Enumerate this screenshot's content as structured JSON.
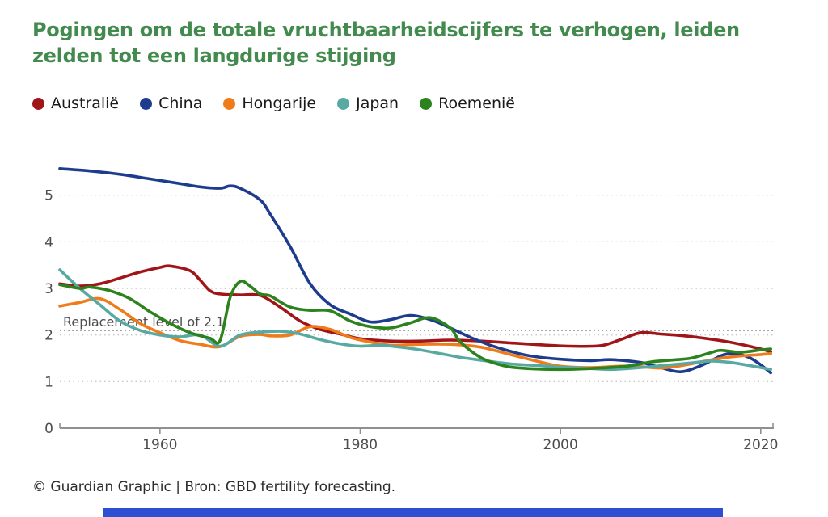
{
  "title": {
    "text": "Pogingen om de totale vruchtbaarheidscijfers te verhogen, leiden zelden tot een langdurige stijging",
    "color": "#428a4d"
  },
  "footer": {
    "text": "© Guardian Graphic | Bron: GBD fertility forecasting."
  },
  "colors": {
    "background": "#ffffff",
    "grid": "#c7c7c7",
    "replacement_line": "#8a8a8a",
    "axis": "#909090",
    "tick_label": "#4d4d4d",
    "bottom_bar": "#2d4fd3"
  },
  "chart_data": {
    "type": "line",
    "title": "Pogingen om de totale vruchtbaarheidscijfers te verhogen, leiden zelden tot een langdurige stijging",
    "xlabel": "",
    "ylabel": "",
    "xlim": [
      1950,
      2021.5
    ],
    "ylim": [
      0,
      5.7
    ],
    "x_ticks": [
      1960,
      1980,
      2000,
      2020
    ],
    "y_ticks": [
      0,
      1,
      2,
      3,
      4,
      5
    ],
    "grid": "horizontal dotted",
    "legend_position": "top-left",
    "annotation": {
      "text": "Replacement level of 2.1",
      "y": 2.1
    },
    "series": [
      {
        "name": "Australië",
        "color": "#a01518",
        "points": [
          [
            1950,
            3.1
          ],
          [
            1952,
            3.05
          ],
          [
            1954,
            3.1
          ],
          [
            1956,
            3.22
          ],
          [
            1958,
            3.35
          ],
          [
            1960,
            3.45
          ],
          [
            1961,
            3.48
          ],
          [
            1963,
            3.38
          ],
          [
            1964,
            3.18
          ],
          [
            1965,
            2.95
          ],
          [
            1966,
            2.88
          ],
          [
            1968,
            2.86
          ],
          [
            1970,
            2.85
          ],
          [
            1972,
            2.6
          ],
          [
            1974,
            2.3
          ],
          [
            1976,
            2.12
          ],
          [
            1978,
            2.02
          ],
          [
            1980,
            1.92
          ],
          [
            1983,
            1.87
          ],
          [
            1986,
            1.87
          ],
          [
            1989,
            1.89
          ],
          [
            1992,
            1.87
          ],
          [
            1995,
            1.83
          ],
          [
            1998,
            1.79
          ],
          [
            2001,
            1.76
          ],
          [
            2004,
            1.77
          ],
          [
            2006,
            1.9
          ],
          [
            2008,
            2.05
          ],
          [
            2010,
            2.02
          ],
          [
            2012,
            1.99
          ],
          [
            2014,
            1.94
          ],
          [
            2016,
            1.88
          ],
          [
            2018,
            1.8
          ],
          [
            2020,
            1.7
          ],
          [
            2021,
            1.64
          ]
        ]
      },
      {
        "name": "China",
        "color": "#1d3c8d",
        "points": [
          [
            1950,
            5.57
          ],
          [
            1953,
            5.52
          ],
          [
            1956,
            5.45
          ],
          [
            1959,
            5.35
          ],
          [
            1962,
            5.25
          ],
          [
            1964,
            5.18
          ],
          [
            1966,
            5.15
          ],
          [
            1967,
            5.2
          ],
          [
            1968,
            5.15
          ],
          [
            1970,
            4.9
          ],
          [
            1971,
            4.6
          ],
          [
            1973,
            3.9
          ],
          [
            1975,
            3.1
          ],
          [
            1977,
            2.65
          ],
          [
            1979,
            2.45
          ],
          [
            1981,
            2.28
          ],
          [
            1983,
            2.33
          ],
          [
            1985,
            2.42
          ],
          [
            1987,
            2.33
          ],
          [
            1989,
            2.15
          ],
          [
            1991,
            1.95
          ],
          [
            1993,
            1.78
          ],
          [
            1995,
            1.65
          ],
          [
            1997,
            1.55
          ],
          [
            2000,
            1.48
          ],
          [
            2003,
            1.45
          ],
          [
            2005,
            1.47
          ],
          [
            2008,
            1.41
          ],
          [
            2010,
            1.3
          ],
          [
            2012,
            1.21
          ],
          [
            2014,
            1.34
          ],
          [
            2016,
            1.55
          ],
          [
            2017,
            1.6
          ],
          [
            2018,
            1.58
          ],
          [
            2019,
            1.5
          ],
          [
            2020,
            1.36
          ],
          [
            2021,
            1.19
          ]
        ]
      },
      {
        "name": "Hongarije",
        "color": "#ef7c1a",
        "points": [
          [
            1950,
            2.62
          ],
          [
            1952,
            2.7
          ],
          [
            1954,
            2.78
          ],
          [
            1956,
            2.55
          ],
          [
            1958,
            2.25
          ],
          [
            1960,
            2.05
          ],
          [
            1962,
            1.88
          ],
          [
            1964,
            1.8
          ],
          [
            1966,
            1.75
          ],
          [
            1968,
            1.97
          ],
          [
            1970,
            2.01
          ],
          [
            1971,
            1.98
          ],
          [
            1973,
            2.0
          ],
          [
            1975,
            2.18
          ],
          [
            1977,
            2.12
          ],
          [
            1979,
            1.95
          ],
          [
            1981,
            1.85
          ],
          [
            1983,
            1.78
          ],
          [
            1986,
            1.8
          ],
          [
            1989,
            1.8
          ],
          [
            1992,
            1.74
          ],
          [
            1995,
            1.58
          ],
          [
            1998,
            1.42
          ],
          [
            2000,
            1.33
          ],
          [
            2003,
            1.3
          ],
          [
            2006,
            1.33
          ],
          [
            2008,
            1.32
          ],
          [
            2010,
            1.29
          ],
          [
            2012,
            1.34
          ],
          [
            2014,
            1.42
          ],
          [
            2016,
            1.5
          ],
          [
            2018,
            1.55
          ],
          [
            2020,
            1.58
          ],
          [
            2021,
            1.6
          ]
        ]
      },
      {
        "name": "Japan",
        "color": "#57a9a2",
        "points": [
          [
            1950,
            3.4
          ],
          [
            1952,
            3.0
          ],
          [
            1954,
            2.65
          ],
          [
            1956,
            2.3
          ],
          [
            1958,
            2.1
          ],
          [
            1960,
            2.0
          ],
          [
            1962,
            1.96
          ],
          [
            1964,
            2.0
          ],
          [
            1966,
            1.76
          ],
          [
            1968,
            2.0
          ],
          [
            1970,
            2.06
          ],
          [
            1972,
            2.08
          ],
          [
            1974,
            2.02
          ],
          [
            1976,
            1.9
          ],
          [
            1978,
            1.81
          ],
          [
            1980,
            1.76
          ],
          [
            1982,
            1.78
          ],
          [
            1984,
            1.74
          ],
          [
            1986,
            1.68
          ],
          [
            1988,
            1.6
          ],
          [
            1990,
            1.52
          ],
          [
            1992,
            1.46
          ],
          [
            1995,
            1.38
          ],
          [
            1998,
            1.34
          ],
          [
            2000,
            1.31
          ],
          [
            2003,
            1.28
          ],
          [
            2005,
            1.26
          ],
          [
            2008,
            1.3
          ],
          [
            2010,
            1.34
          ],
          [
            2013,
            1.4
          ],
          [
            2015,
            1.44
          ],
          [
            2017,
            1.41
          ],
          [
            2019,
            1.34
          ],
          [
            2021,
            1.26
          ]
        ]
      },
      {
        "name": "Roemenië",
        "color": "#2c821c",
        "points": [
          [
            1950,
            3.08
          ],
          [
            1952,
            3.0
          ],
          [
            1953,
            3.03
          ],
          [
            1955,
            2.95
          ],
          [
            1957,
            2.78
          ],
          [
            1959,
            2.5
          ],
          [
            1961,
            2.25
          ],
          [
            1963,
            2.05
          ],
          [
            1965,
            1.93
          ],
          [
            1966,
            1.88
          ],
          [
            1967,
            2.8
          ],
          [
            1968,
            3.15
          ],
          [
            1969,
            3.05
          ],
          [
            1970,
            2.88
          ],
          [
            1971,
            2.84
          ],
          [
            1973,
            2.6
          ],
          [
            1975,
            2.53
          ],
          [
            1977,
            2.52
          ],
          [
            1979,
            2.3
          ],
          [
            1981,
            2.18
          ],
          [
            1983,
            2.15
          ],
          [
            1985,
            2.26
          ],
          [
            1987,
            2.37
          ],
          [
            1989,
            2.15
          ],
          [
            1990,
            1.85
          ],
          [
            1992,
            1.52
          ],
          [
            1994,
            1.36
          ],
          [
            1996,
            1.29
          ],
          [
            2000,
            1.26
          ],
          [
            2004,
            1.29
          ],
          [
            2007,
            1.34
          ],
          [
            2009,
            1.42
          ],
          [
            2011,
            1.46
          ],
          [
            2013,
            1.5
          ],
          [
            2015,
            1.62
          ],
          [
            2016,
            1.67
          ],
          [
            2018,
            1.63
          ],
          [
            2020,
            1.68
          ],
          [
            2021,
            1.7
          ]
        ]
      }
    ]
  }
}
